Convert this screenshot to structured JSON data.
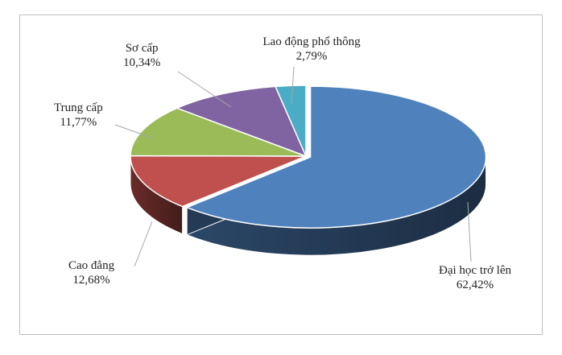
{
  "chart_data": {
    "type": "pie",
    "three_d": true,
    "title": "",
    "slices": [
      {
        "label": "Đại học trở lên",
        "value_text": "62,42%",
        "value": 62.42,
        "color": "#4f81bd"
      },
      {
        "label": "Cao đẳng",
        "value_text": "12,68%",
        "value": 12.68,
        "color": "#c0504d"
      },
      {
        "label": "Trung cấp",
        "value_text": "11,77%",
        "value": 11.77,
        "color": "#9bbb59"
      },
      {
        "label": "Sơ cấp",
        "value_text": "10,34%",
        "value": 10.34,
        "color": "#8064a2"
      },
      {
        "label": "Lao động phổ thông",
        "value_text": "2,79%",
        "value": 2.79,
        "color": "#4bacc6"
      }
    ],
    "legend": "none"
  }
}
